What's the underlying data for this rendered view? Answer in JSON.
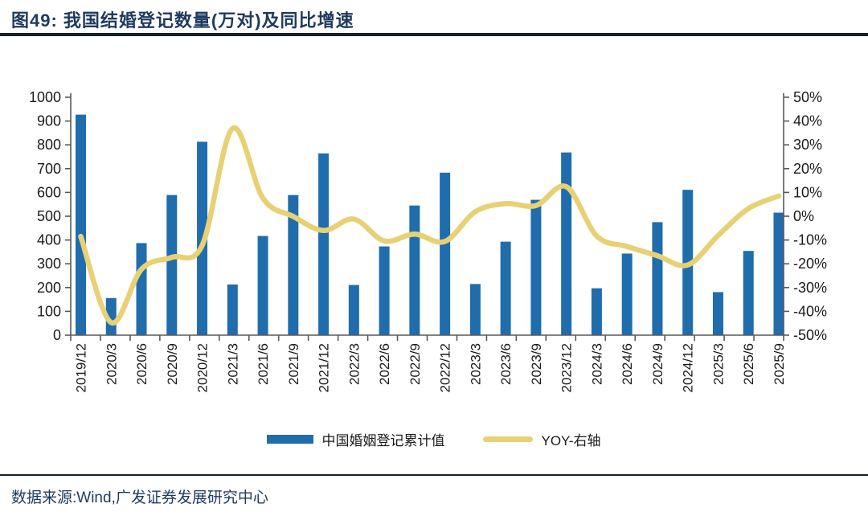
{
  "header": {
    "title": "图49:  我国结婚登记数量(万对)及同比增速"
  },
  "footer": {
    "source": "数据来源:Wind,广发证券发展研究中心"
  },
  "legend": {
    "bar_label": "中国婚姻登记累计值",
    "line_label": "YOY-右轴"
  },
  "colors": {
    "bar": "#1f6dad",
    "line": "#e8d174",
    "axis": "#595959",
    "tick_text": "#1a1a1a",
    "title_text": "#1e3a5f",
    "rule": "#14222e"
  },
  "chart_data": {
    "type": "bar",
    "title": "我国结婚登记数量(万对)及同比增速",
    "categories": [
      "2019/12",
      "2020/3",
      "2020/6",
      "2020/9",
      "2020/12",
      "2021/3",
      "2021/6",
      "2021/9",
      "2021/12",
      "2022/3",
      "2022/6",
      "2022/9",
      "2022/12",
      "2023/3",
      "2023/6",
      "2023/9",
      "2023/12",
      "2024/3",
      "2024/6",
      "2024/9",
      "2024/12",
      "2025/3",
      "2025/6",
      "2025/9"
    ],
    "series": [
      {
        "name": "中国婚姻登记累计值",
        "type": "bar",
        "axis": "left",
        "values": [
          927,
          156,
          387,
          589,
          813,
          213,
          417,
          589,
          764,
          211,
          373,
          545,
          683,
          215,
          393,
          569,
          768,
          197,
          343,
          475,
          611,
          181,
          354,
          515
        ]
      },
      {
        "name": "YOY-右轴",
        "type": "line",
        "axis": "right",
        "values": [
          -8.5,
          -44.7,
          -22.3,
          -17.3,
          -12.3,
          36.9,
          7.6,
          -0.1,
          -6.0,
          -1.2,
          -10.4,
          -7.5,
          -10.6,
          1.9,
          5.3,
          4.5,
          12.4,
          -8.3,
          -12.7,
          -16.6,
          -20.5,
          -8.1,
          3.2,
          8.5
        ]
      }
    ],
    "left_axis": {
      "min": 0,
      "max": 1000,
      "ticks": [
        0,
        100,
        200,
        300,
        400,
        500,
        600,
        700,
        800,
        900,
        1000
      ],
      "tick_labels": [
        "0",
        "100",
        "200",
        "300",
        "400",
        "500",
        "600",
        "700",
        "800",
        "900",
        "1000"
      ]
    },
    "right_axis": {
      "min": -50,
      "max": 50,
      "ticks": [
        -50,
        -40,
        -30,
        -20,
        -10,
        0,
        10,
        20,
        30,
        40,
        50
      ],
      "tick_labels": [
        "-50%",
        "-40%",
        "-30%",
        "-20%",
        "-10%",
        "0%",
        "10%",
        "20%",
        "30%",
        "40%",
        "50%"
      ]
    },
    "grid": false,
    "legend_position": "bottom"
  }
}
